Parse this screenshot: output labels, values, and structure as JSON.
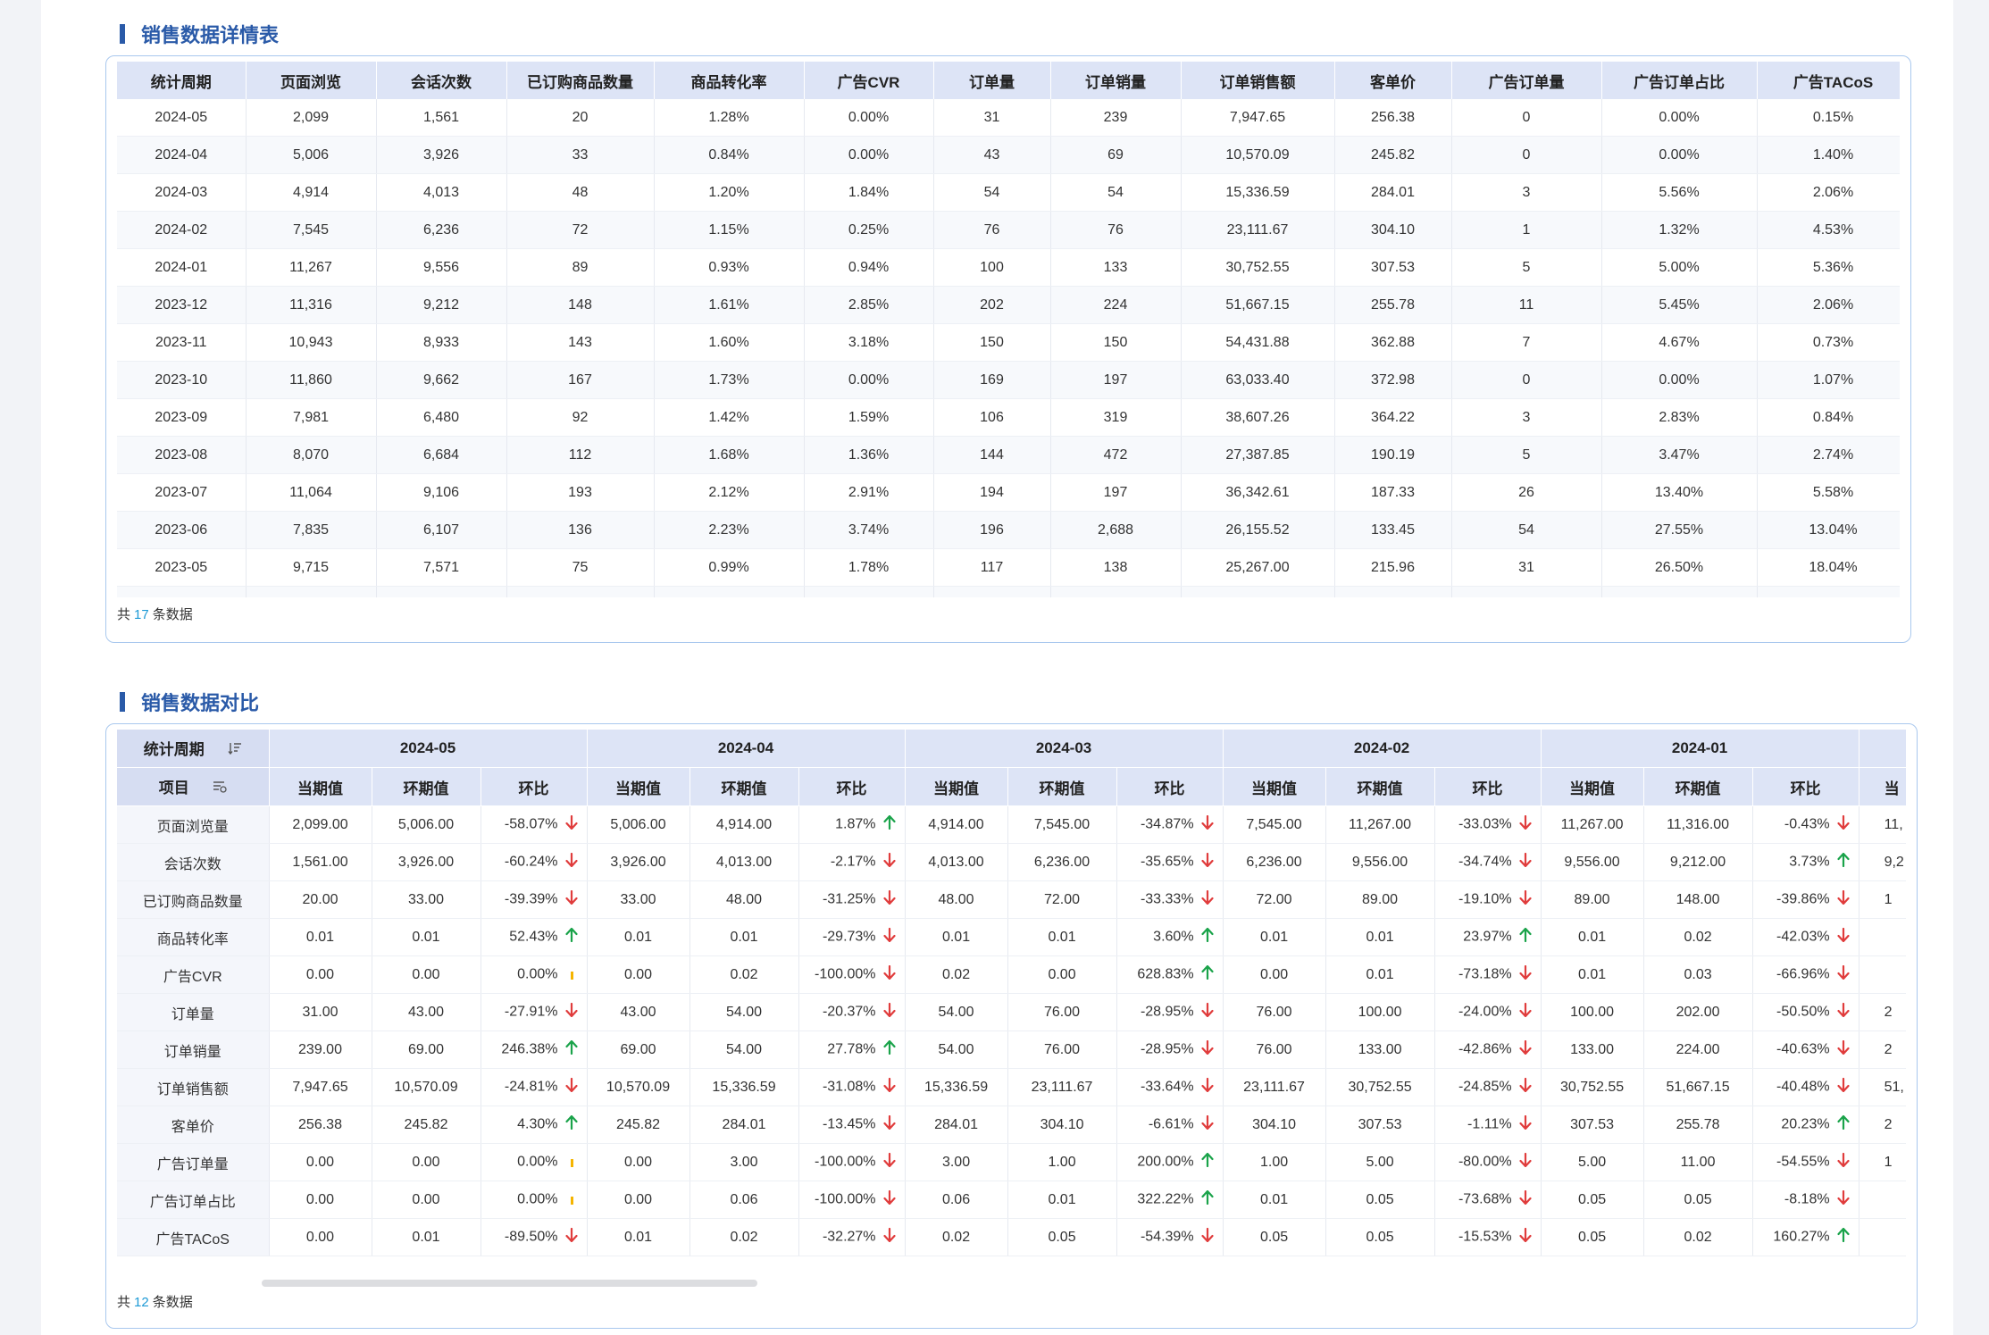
{
  "detail": {
    "title": "销售数据详情表",
    "headers": [
      "统计周期",
      "页面浏览",
      "会话次数",
      "已订购商品数量",
      "商品转化率",
      "广告CVR",
      "订单量",
      "订单销量",
      "订单销售额",
      "客单价",
      "广告订单量",
      "广告订单占比",
      "广告TACoS"
    ],
    "rows": [
      [
        "2024-05",
        "2,099",
        "1,561",
        "20",
        "1.28%",
        "0.00%",
        "31",
        "239",
        "7,947.65",
        "256.38",
        "0",
        "0.00%",
        "0.15%"
      ],
      [
        "2024-04",
        "5,006",
        "3,926",
        "33",
        "0.84%",
        "0.00%",
        "43",
        "69",
        "10,570.09",
        "245.82",
        "0",
        "0.00%",
        "1.40%"
      ],
      [
        "2024-03",
        "4,914",
        "4,013",
        "48",
        "1.20%",
        "1.84%",
        "54",
        "54",
        "15,336.59",
        "284.01",
        "3",
        "5.56%",
        "2.06%"
      ],
      [
        "2024-02",
        "7,545",
        "6,236",
        "72",
        "1.15%",
        "0.25%",
        "76",
        "76",
        "23,111.67",
        "304.10",
        "1",
        "1.32%",
        "4.53%"
      ],
      [
        "2024-01",
        "11,267",
        "9,556",
        "89",
        "0.93%",
        "0.94%",
        "100",
        "133",
        "30,752.55",
        "307.53",
        "5",
        "5.00%",
        "5.36%"
      ],
      [
        "2023-12",
        "11,316",
        "9,212",
        "148",
        "1.61%",
        "2.85%",
        "202",
        "224",
        "51,667.15",
        "255.78",
        "11",
        "5.45%",
        "2.06%"
      ],
      [
        "2023-11",
        "10,943",
        "8,933",
        "143",
        "1.60%",
        "3.18%",
        "150",
        "150",
        "54,431.88",
        "362.88",
        "7",
        "4.67%",
        "0.73%"
      ],
      [
        "2023-10",
        "11,860",
        "9,662",
        "167",
        "1.73%",
        "0.00%",
        "169",
        "197",
        "63,033.40",
        "372.98",
        "0",
        "0.00%",
        "1.07%"
      ],
      [
        "2023-09",
        "7,981",
        "6,480",
        "92",
        "1.42%",
        "1.59%",
        "106",
        "319",
        "38,607.26",
        "364.22",
        "3",
        "2.83%",
        "0.84%"
      ],
      [
        "2023-08",
        "8,070",
        "6,684",
        "112",
        "1.68%",
        "1.36%",
        "144",
        "472",
        "27,387.85",
        "190.19",
        "5",
        "3.47%",
        "2.74%"
      ],
      [
        "2023-07",
        "11,064",
        "9,106",
        "193",
        "2.12%",
        "2.91%",
        "194",
        "197",
        "36,342.61",
        "187.33",
        "26",
        "13.40%",
        "5.58%"
      ],
      [
        "2023-06",
        "7,835",
        "6,107",
        "136",
        "2.23%",
        "3.74%",
        "196",
        "2,688",
        "26,155.52",
        "133.45",
        "54",
        "27.55%",
        "13.04%"
      ],
      [
        "2023-05",
        "9,715",
        "7,571",
        "75",
        "0.99%",
        "1.78%",
        "117",
        "138",
        "25,267.00",
        "215.96",
        "31",
        "26.50%",
        "18.04%"
      ]
    ],
    "footer": {
      "prefix": "共",
      "count": "17",
      "suffix": "条数据"
    }
  },
  "compare": {
    "title": "销售数据对比",
    "period_label": "统计周期",
    "item_label": "项目",
    "periods": [
      "2024-05",
      "2024-04",
      "2024-03",
      "2024-02",
      "2024-01"
    ],
    "sub_headers": [
      "当期值",
      "环期值",
      "环比"
    ],
    "partial_sub_header": "当",
    "colors": {
      "up": "#1aa34a",
      "down": "#e03c3c",
      "flat": "#f5b400"
    },
    "rows": [
      {
        "name": "页面浏览量",
        "cells": [
          [
            "2,099.00",
            "5,006.00",
            "-58.07%",
            "down"
          ],
          [
            "5,006.00",
            "4,914.00",
            "1.87%",
            "up"
          ],
          [
            "4,914.00",
            "7,545.00",
            "-34.87%",
            "down"
          ],
          [
            "7,545.00",
            "11,267.00",
            "-33.03%",
            "down"
          ],
          [
            "11,267.00",
            "11,316.00",
            "-0.43%",
            "down"
          ]
        ],
        "partial": "11,"
      },
      {
        "name": "会话次数",
        "cells": [
          [
            "1,561.00",
            "3,926.00",
            "-60.24%",
            "down"
          ],
          [
            "3,926.00",
            "4,013.00",
            "-2.17%",
            "down"
          ],
          [
            "4,013.00",
            "6,236.00",
            "-35.65%",
            "down"
          ],
          [
            "6,236.00",
            "9,556.00",
            "-34.74%",
            "down"
          ],
          [
            "9,556.00",
            "9,212.00",
            "3.73%",
            "up"
          ]
        ],
        "partial": "9,2"
      },
      {
        "name": "已订购商品数量",
        "cells": [
          [
            "20.00",
            "33.00",
            "-39.39%",
            "down"
          ],
          [
            "33.00",
            "48.00",
            "-31.25%",
            "down"
          ],
          [
            "48.00",
            "72.00",
            "-33.33%",
            "down"
          ],
          [
            "72.00",
            "89.00",
            "-19.10%",
            "down"
          ],
          [
            "89.00",
            "148.00",
            "-39.86%",
            "down"
          ]
        ],
        "partial": "1"
      },
      {
        "name": "商品转化率",
        "cells": [
          [
            "0.01",
            "0.01",
            "52.43%",
            "up"
          ],
          [
            "0.01",
            "0.01",
            "-29.73%",
            "down"
          ],
          [
            "0.01",
            "0.01",
            "3.60%",
            "up"
          ],
          [
            "0.01",
            "0.01",
            "23.97%",
            "up"
          ],
          [
            "0.01",
            "0.02",
            "-42.03%",
            "down"
          ]
        ],
        "partial": ""
      },
      {
        "name": "广告CVR",
        "cells": [
          [
            "0.00",
            "0.00",
            "0.00%",
            "flat"
          ],
          [
            "0.00",
            "0.02",
            "-100.00%",
            "down"
          ],
          [
            "0.02",
            "0.00",
            "628.83%",
            "up"
          ],
          [
            "0.00",
            "0.01",
            "-73.18%",
            "down"
          ],
          [
            "0.01",
            "0.03",
            "-66.96%",
            "down"
          ]
        ],
        "partial": ""
      },
      {
        "name": "订单量",
        "cells": [
          [
            "31.00",
            "43.00",
            "-27.91%",
            "down"
          ],
          [
            "43.00",
            "54.00",
            "-20.37%",
            "down"
          ],
          [
            "54.00",
            "76.00",
            "-28.95%",
            "down"
          ],
          [
            "76.00",
            "100.00",
            "-24.00%",
            "down"
          ],
          [
            "100.00",
            "202.00",
            "-50.50%",
            "down"
          ]
        ],
        "partial": "2"
      },
      {
        "name": "订单销量",
        "cells": [
          [
            "239.00",
            "69.00",
            "246.38%",
            "up"
          ],
          [
            "69.00",
            "54.00",
            "27.78%",
            "up"
          ],
          [
            "54.00",
            "76.00",
            "-28.95%",
            "down"
          ],
          [
            "76.00",
            "133.00",
            "-42.86%",
            "down"
          ],
          [
            "133.00",
            "224.00",
            "-40.63%",
            "down"
          ]
        ],
        "partial": "2"
      },
      {
        "name": "订单销售额",
        "cells": [
          [
            "7,947.65",
            "10,570.09",
            "-24.81%",
            "down"
          ],
          [
            "10,570.09",
            "15,336.59",
            "-31.08%",
            "down"
          ],
          [
            "15,336.59",
            "23,111.67",
            "-33.64%",
            "down"
          ],
          [
            "23,111.67",
            "30,752.55",
            "-24.85%",
            "down"
          ],
          [
            "30,752.55",
            "51,667.15",
            "-40.48%",
            "down"
          ]
        ],
        "partial": "51,"
      },
      {
        "name": "客单价",
        "cells": [
          [
            "256.38",
            "245.82",
            "4.30%",
            "up"
          ],
          [
            "245.82",
            "284.01",
            "-13.45%",
            "down"
          ],
          [
            "284.01",
            "304.10",
            "-6.61%",
            "down"
          ],
          [
            "304.10",
            "307.53",
            "-1.11%",
            "down"
          ],
          [
            "307.53",
            "255.78",
            "20.23%",
            "up"
          ]
        ],
        "partial": "2"
      },
      {
        "name": "广告订单量",
        "cells": [
          [
            "0.00",
            "0.00",
            "0.00%",
            "flat"
          ],
          [
            "0.00",
            "3.00",
            "-100.00%",
            "down"
          ],
          [
            "3.00",
            "1.00",
            "200.00%",
            "up"
          ],
          [
            "1.00",
            "5.00",
            "-80.00%",
            "down"
          ],
          [
            "5.00",
            "11.00",
            "-54.55%",
            "down"
          ]
        ],
        "partial": "1"
      },
      {
        "name": "广告订单占比",
        "cells": [
          [
            "0.00",
            "0.00",
            "0.00%",
            "flat"
          ],
          [
            "0.00",
            "0.06",
            "-100.00%",
            "down"
          ],
          [
            "0.06",
            "0.01",
            "322.22%",
            "up"
          ],
          [
            "0.01",
            "0.05",
            "-73.68%",
            "down"
          ],
          [
            "0.05",
            "0.05",
            "-8.18%",
            "down"
          ]
        ],
        "partial": ""
      },
      {
        "name": "广告TACoS",
        "cells": [
          [
            "0.00",
            "0.01",
            "-89.50%",
            "down"
          ],
          [
            "0.01",
            "0.02",
            "-32.27%",
            "down"
          ],
          [
            "0.02",
            "0.05",
            "-54.39%",
            "down"
          ],
          [
            "0.05",
            "0.05",
            "-15.53%",
            "down"
          ],
          [
            "0.05",
            "0.02",
            "160.27%",
            "up"
          ]
        ],
        "partial": ""
      }
    ],
    "footer": {
      "prefix": "共",
      "count": "12",
      "suffix": "条数据"
    }
  }
}
